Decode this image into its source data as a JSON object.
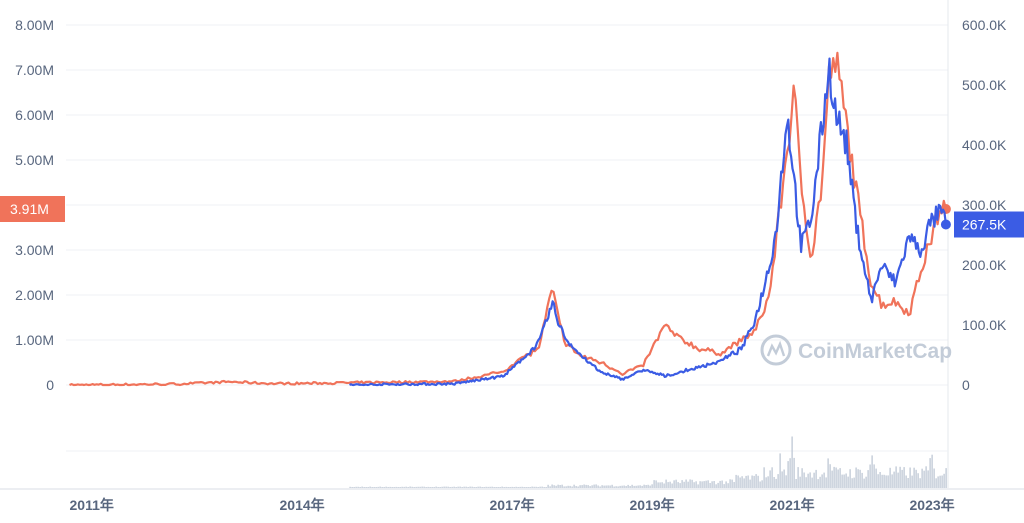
{
  "watermark": "CoinMarketCap",
  "colors": {
    "series_a": "#f0735a",
    "series_b": "#3b5ce4",
    "volume": "#b9c3d1",
    "grid": "#eff2f5",
    "axis_text": "#58667e"
  },
  "chart_data": {
    "type": "line",
    "title": "",
    "xlabel": "",
    "ylabel_left": "",
    "ylabel_right": "",
    "x_tick_labels": [
      "2011年",
      "2014年",
      "2017年",
      "2019年",
      "2021年",
      "2023年"
    ],
    "x_tick_years": [
      2011.0,
      2014.0,
      2017.0,
      2019.0,
      2021.0,
      2023.0
    ],
    "x_range": [
      2010.95,
      2023.55
    ],
    "left_axis": {
      "range": [
        0,
        8000000
      ],
      "tick_values": [
        0,
        1000000,
        2000000,
        3000000,
        4000000,
        5000000,
        6000000,
        7000000,
        8000000
      ],
      "tick_labels": [
        "0",
        "1.00M",
        "2.00M",
        "3.00M",
        "",
        "5.00M",
        "6.00M",
        "7.00M",
        "8.00M"
      ]
    },
    "right_axis": {
      "range": [
        0,
        600000
      ],
      "tick_values": [
        0,
        100000,
        200000,
        300000,
        400000,
        500000,
        600000
      ],
      "tick_labels": [
        "0",
        "100.0K",
        "200.0K",
        "300.0K",
        "400.0K",
        "500.0K",
        "600.0K"
      ]
    },
    "current_left_label": "3.91M",
    "current_left_value": 3910000,
    "current_right_label": "267.5K",
    "current_right_value": 267500,
    "grid": true,
    "series": [
      {
        "axis": "left",
        "x": [
          2011.0,
          2012.5,
          2013.3,
          2013.9,
          2014.5,
          2015.5,
          2016.5,
          2017.2,
          2017.4,
          2017.7,
          2017.9,
          2018.0,
          2018.1,
          2018.3,
          2018.6,
          2018.9,
          2019.2,
          2019.5,
          2019.7,
          2020.0,
          2020.3,
          2020.6,
          2020.8,
          2021.0,
          2021.1,
          2021.25,
          2021.35,
          2021.45,
          2021.6,
          2021.75,
          2021.85,
          2021.95,
          2022.1,
          2022.25,
          2022.45,
          2022.6,
          2022.8,
          2023.0,
          2023.15,
          2023.3,
          2023.45,
          2023.52
        ],
        "values": [
          0,
          20000,
          70000,
          30000,
          40000,
          60000,
          80000,
          300000,
          550000,
          800000,
          2150000,
          1350000,
          900000,
          650000,
          500000,
          250000,
          450000,
          1320000,
          1050000,
          800000,
          700000,
          1000000,
          1200000,
          2000000,
          3300000,
          5200000,
          6500000,
          4500000,
          2800000,
          4500000,
          6800000,
          7200000,
          5800000,
          4200000,
          2300000,
          1800000,
          1850000,
          1600000,
          2500000,
          3200000,
          4000000,
          3910000
        ]
      },
      {
        "axis": "right",
        "x": [
          2015.0,
          2015.5,
          2016.5,
          2017.2,
          2017.4,
          2017.7,
          2017.9,
          2018.0,
          2018.1,
          2018.3,
          2018.6,
          2018.9,
          2019.2,
          2019.5,
          2019.7,
          2020.0,
          2020.3,
          2020.6,
          2020.8,
          2021.0,
          2021.1,
          2021.25,
          2021.32,
          2021.45,
          2021.6,
          2021.75,
          2021.85,
          2021.95,
          2022.1,
          2022.25,
          2022.45,
          2022.6,
          2022.8,
          2023.0,
          2023.15,
          2023.3,
          2023.45,
          2023.52
        ],
        "values": [
          0,
          1000,
          2000,
          15000,
          35000,
          70000,
          135000,
          100000,
          75000,
          50000,
          20000,
          10000,
          25000,
          15000,
          20000,
          30000,
          40000,
          60000,
          110000,
          200000,
          260000,
          450000,
          380000,
          230000,
          280000,
          430000,
          530000,
          450000,
          400000,
          260000,
          140000,
          200000,
          170000,
          250000,
          220000,
          270000,
          290000,
          267500
        ]
      }
    ],
    "volume": {
      "x_range": [
        2015.0,
        2023.52
      ],
      "peaks": [
        {
          "x": 2021.15,
          "relative": 0.55
        },
        {
          "x": 2021.3,
          "relative": 1.0
        },
        {
          "x": 2021.85,
          "relative": 0.6
        },
        {
          "x": 2022.45,
          "relative": 0.75
        },
        {
          "x": 2023.3,
          "relative": 0.65
        }
      ]
    }
  }
}
